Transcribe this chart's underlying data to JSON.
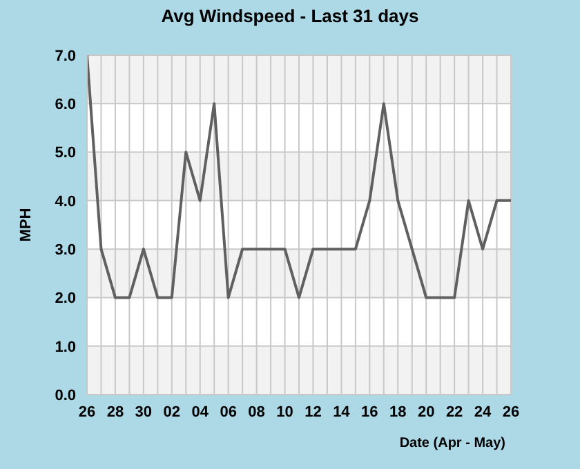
{
  "chart_data": {
    "type": "line",
    "title": "Avg Windspeed - Last 31 days",
    "xlabel": "Date (Apr - May)",
    "ylabel": "MPH",
    "categories": [
      "26",
      null,
      "28",
      null,
      "30",
      null,
      "02",
      null,
      "04",
      null,
      "06",
      null,
      "08",
      null,
      "10",
      null,
      "12",
      null,
      "14",
      null,
      "16",
      null,
      "18",
      null,
      "20",
      null,
      "22",
      null,
      "24",
      null,
      "26"
    ],
    "series": [
      {
        "color": "#606060",
        "values": [
          7,
          3,
          2,
          2,
          3,
          2,
          2,
          5,
          4,
          6,
          2,
          3,
          3,
          3,
          3,
          2,
          3,
          3,
          3,
          3,
          4,
          6,
          4,
          3,
          2,
          2,
          2,
          4,
          3,
          4,
          4
        ]
      }
    ],
    "ylim": [
      0,
      7
    ],
    "yticks": [
      {
        "value": 0,
        "label": "0.0"
      },
      {
        "value": 1,
        "label": "1.0"
      },
      {
        "value": 2,
        "label": "2.0"
      },
      {
        "value": 3,
        "label": "3.0"
      },
      {
        "value": 4,
        "label": "4.0"
      },
      {
        "value": 5,
        "label": "5.0"
      },
      {
        "value": 6,
        "label": "6.0"
      },
      {
        "value": 7,
        "label": "7.0"
      }
    ],
    "grid": true,
    "legend": false,
    "marker": "none",
    "line_style": "solid"
  }
}
